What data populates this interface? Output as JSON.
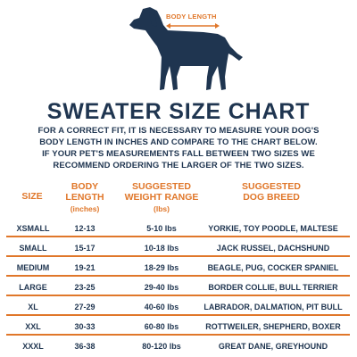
{
  "colors": {
    "navy": "#1f3550",
    "orange": "#e0772a"
  },
  "illustration": {
    "icon": "dog-silhouette-icon",
    "measure_label": "BODY LENGTH"
  },
  "title": "SWEATER SIZE CHART",
  "intro": {
    "line1": "FOR A CORRECT FIT, IT IS NECESSARY TO MEASURE YOUR DOG'S",
    "line2": "BODY LENGTH IN INCHES AND COMPARE TO THE CHART BELOW.",
    "line3": "IF YOUR PET'S MEASUREMENTS FALL BETWEEN TWO SIZES WE",
    "line4": "RECOMMEND ORDERING THE LARGER OF THE TWO SIZES."
  },
  "headers": {
    "size": "SIZE",
    "length_line1": "BODY",
    "length_line2": "LENGTH",
    "length_unit": "(inches)",
    "weight_line1": "SUGGESTED",
    "weight_line2": "WEIGHT RANGE",
    "weight_unit": "(lbs)",
    "breed_line1": "SUGGESTED",
    "breed_line2": "DOG BREED"
  },
  "rows": [
    {
      "size": "XSMALL",
      "length": "12-13",
      "weight": "5-10 lbs",
      "breed": "YORKIE, TOY POODLE, MALTESE"
    },
    {
      "size": "SMALL",
      "length": "15-17",
      "weight": "10-18 lbs",
      "breed": "JACK RUSSEL, DACHSHUND"
    },
    {
      "size": "MEDIUM",
      "length": "19-21",
      "weight": "18-29 lbs",
      "breed": "BEAGLE, PUG, COCKER SPANIEL"
    },
    {
      "size": "LARGE",
      "length": "23-25",
      "weight": "29-40 lbs",
      "breed": "BORDER COLLIE, BULL TERRIER"
    },
    {
      "size": "XL",
      "length": "27-29",
      "weight": "40-60 lbs",
      "breed": "LABRADOR, DALMATION, PIT BULL"
    },
    {
      "size": "XXL",
      "length": "30-33",
      "weight": "60-80 lbs",
      "breed": "ROTTWEILER, SHEPHERD, BOXER"
    },
    {
      "size": "XXXL",
      "length": "36-38",
      "weight": "80-120 lbs",
      "breed": "GREAT DANE, GREYHOUND"
    }
  ]
}
